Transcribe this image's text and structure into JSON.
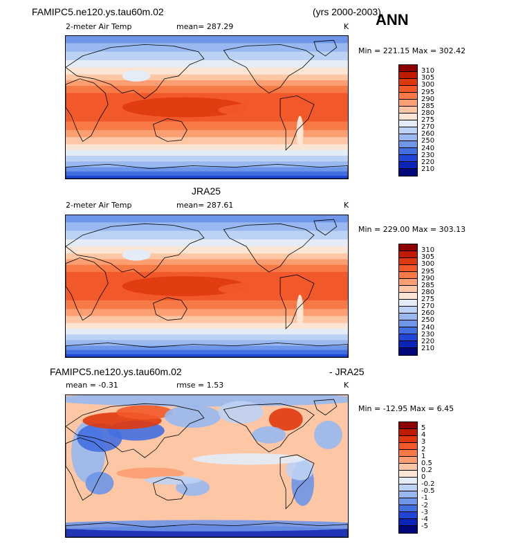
{
  "header": {
    "case_title": "FAMIPC5.ne120.ys.tau60m.02",
    "years": "(yrs 2000-2003)",
    "season": "ANN"
  },
  "panels": [
    {
      "title": "",
      "variable": "2-meter Air Temp",
      "stat_text": "mean= 287.29",
      "units": "K",
      "minmax": "Min = 221.15 Max = 302.42",
      "colorbar": {
        "labels": [
          "310",
          "305",
          "300",
          "295",
          "290",
          "285",
          "280",
          "275",
          "270",
          "260",
          "250",
          "240",
          "230",
          "220",
          "210"
        ],
        "colors": [
          "#8b0000",
          "#c01a00",
          "#e0380e",
          "#f2592a",
          "#f77a46",
          "#fb9e71",
          "#fdc7a5",
          "#fbe6d6",
          "#e4ecf8",
          "#bcd2f4",
          "#98b8ef",
          "#6d95e8",
          "#426fe0",
          "#1f46d6",
          "#0a24b8",
          "#00087a"
        ]
      },
      "map_style": "mean"
    },
    {
      "title": "JRA25",
      "variable": "2-meter Air Temp",
      "stat_text": "mean= 287.61",
      "units": "K",
      "minmax": "Min = 229.00 Max = 303.13",
      "colorbar": {
        "labels": [
          "310",
          "305",
          "300",
          "295",
          "290",
          "285",
          "280",
          "275",
          "270",
          "260",
          "250",
          "240",
          "230",
          "220",
          "210"
        ],
        "colors": [
          "#8b0000",
          "#c01a00",
          "#e0380e",
          "#f2592a",
          "#f77a46",
          "#fb9e71",
          "#fdc7a5",
          "#fbe6d6",
          "#e4ecf8",
          "#bcd2f4",
          "#98b8ef",
          "#6d95e8",
          "#426fe0",
          "#1f46d6",
          "#0a24b8",
          "#00087a"
        ]
      },
      "map_style": "mean"
    },
    {
      "title_left": "FAMIPC5.ne120.ys.tau60m.02",
      "title_right": "- JRA25",
      "stat_mean": "mean =  -0.31",
      "stat_rmse": "rmse =   1.53",
      "units": "K",
      "minmax": "Min = -12.95 Max =   6.45",
      "colorbar": {
        "labels": [
          "5",
          "4",
          "3",
          "2",
          "1",
          "0.5",
          "0.2",
          "0",
          "-0.2",
          "-0.5",
          "-1",
          "-2",
          "-3",
          "-4",
          "-5"
        ],
        "colors": [
          "#8b0000",
          "#c01a00",
          "#e0380e",
          "#f2592a",
          "#f77a46",
          "#fb9e71",
          "#fdc7a5",
          "#fbe6d6",
          "#e4ecf8",
          "#bcd2f4",
          "#98b8ef",
          "#6d95e8",
          "#426fe0",
          "#1f46d6",
          "#0a24b8",
          "#00087a"
        ]
      },
      "map_style": "diff"
    }
  ]
}
